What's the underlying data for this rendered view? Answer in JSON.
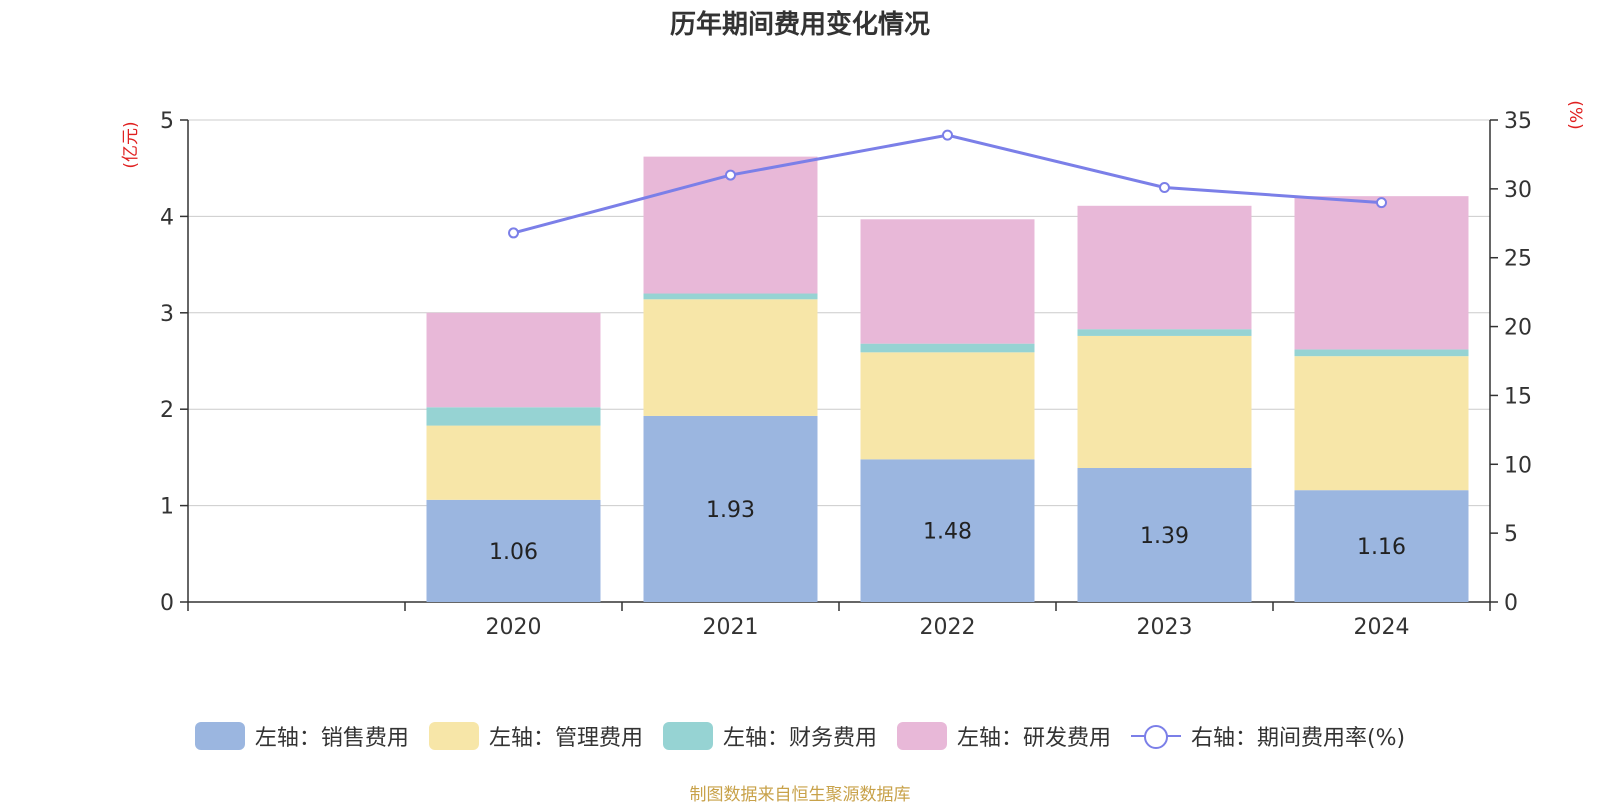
{
  "title": "历年期间费用变化情况",
  "source": "制图数据来自恒生聚源数据库",
  "chart_data": {
    "type": "bar",
    "stacked": true,
    "categories": [
      "",
      "2020",
      "2021",
      "2022",
      "2023",
      "2024"
    ],
    "left_axis": {
      "unit": "(亿元)",
      "ylim": [
        0,
        5
      ],
      "ticks": [
        "0",
        "1",
        "2",
        "3",
        "4",
        "5"
      ]
    },
    "right_axis": {
      "unit": "(%)",
      "ylim": [
        0,
        35
      ],
      "ticks": [
        "0",
        "5",
        "10",
        "15",
        "20",
        "25",
        "30",
        "35"
      ]
    },
    "series": [
      {
        "name": "左轴：销售费用",
        "axis": "left",
        "color": "#9bb6e0",
        "values": [
          null,
          1.06,
          1.93,
          1.48,
          1.39,
          1.16
        ],
        "show_labels": true
      },
      {
        "name": "左轴：管理费用",
        "axis": "left",
        "color": "#f7e6a8",
        "values": [
          null,
          0.77,
          1.21,
          1.11,
          1.37,
          1.39
        ]
      },
      {
        "name": "左轴：财务费用",
        "axis": "left",
        "color": "#96d3d3",
        "values": [
          null,
          0.19,
          0.06,
          0.09,
          0.07,
          0.07
        ]
      },
      {
        "name": "左轴：研发费用",
        "axis": "left",
        "color": "#e8b8d8",
        "values": [
          null,
          0.98,
          1.42,
          1.29,
          1.28,
          1.59
        ]
      },
      {
        "name": "右轴：期间费用率(%)",
        "type": "line",
        "axis": "right",
        "color": "#7b7fe8",
        "values": [
          null,
          26.8,
          31.0,
          33.9,
          30.1,
          29.0
        ]
      }
    ],
    "grid": true,
    "legend_position": "bottom"
  }
}
